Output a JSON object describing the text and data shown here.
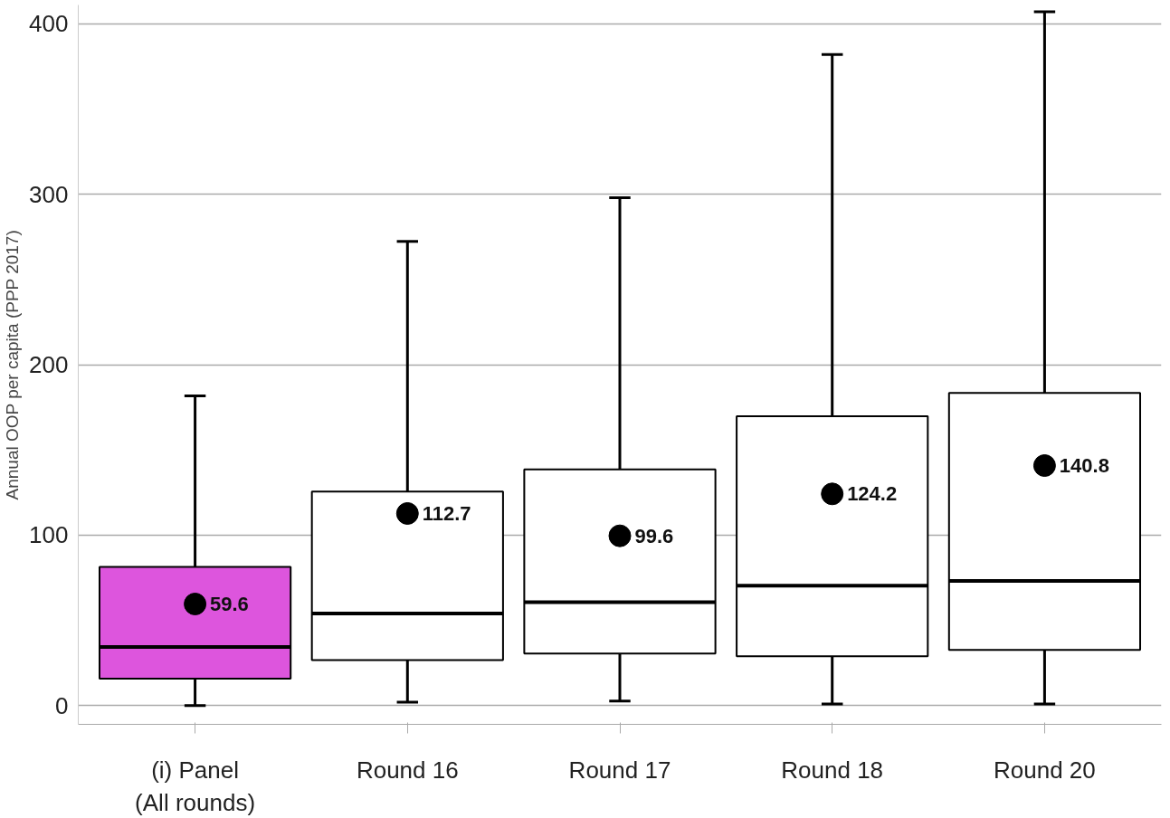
{
  "chart_data": {
    "type": "box",
    "ylabel": "Annual OOP per capita (PPP 2017)",
    "categories": [
      "(i) Panel\n(All rounds)",
      "Round 16",
      "Round 17",
      "Round 18",
      "Round 20"
    ],
    "colors": [
      "#dd55dd",
      "#ffffff",
      "#ffffff",
      "#ffffff",
      "#ffffff"
    ],
    "boxes": [
      {
        "low": 0,
        "q1": 15.8,
        "median": 34.4,
        "q3": 81.3,
        "high": 181.7
      },
      {
        "low": 2,
        "q1": 26.7,
        "median": 54,
        "q3": 125.5,
        "high": 272.3
      },
      {
        "low": 2.7,
        "q1": 30.6,
        "median": 60.6,
        "q3": 138.6,
        "high": 298
      },
      {
        "low": 1,
        "q1": 28.9,
        "median": 70.4,
        "q3": 169.7,
        "high": 382
      },
      {
        "low": 1,
        "q1": 32.7,
        "median": 73.1,
        "q3": 183.4,
        "high": 407
      }
    ],
    "series": [
      {
        "type": "scatter",
        "color": "#000000",
        "x": [
          "(i) Panel\n(All rounds)",
          "Round 16",
          "Round 17",
          "Round 18",
          "Round 20"
        ],
        "values": [
          59.6,
          112.7,
          99.6,
          124.2,
          140.8
        ]
      }
    ],
    "data_labels": true,
    "marker": "circle",
    "ylim": [
      -11,
      411
    ],
    "yticks": [
      0,
      100,
      200,
      300,
      400
    ],
    "grid": "y"
  }
}
